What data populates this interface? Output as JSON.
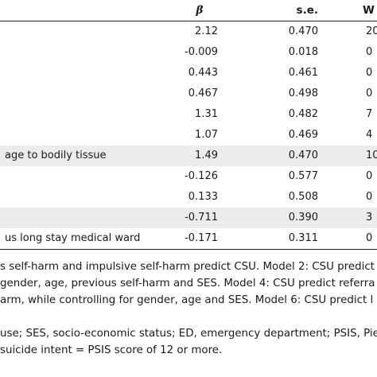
{
  "header": {
    "beta": "β",
    "se": "s.e.",
    "w": "W"
  },
  "rows": [
    {
      "label": "",
      "beta": "2.12",
      "se": "0.470",
      "w": "20"
    },
    {
      "label": "",
      "beta": "-0.009",
      "se": "0.018",
      "w": "0"
    },
    {
      "label": "",
      "beta": "0.443",
      "se": "0.461",
      "w": "0"
    },
    {
      "label": "",
      "beta": "0.467",
      "se": "0.498",
      "w": "0"
    },
    {
      "label": "",
      "beta": "1.31",
      "se": "0.482",
      "w": "7"
    },
    {
      "label": "",
      "beta": "1.07",
      "se": "0.469",
      "w": "4"
    },
    {
      "label": "age to bodily tissue",
      "beta": "1.49",
      "se": "0.470",
      "w": "10"
    },
    {
      "label": "",
      "beta": "-0.126",
      "se": "0.577",
      "w": "0"
    },
    {
      "label": "",
      "beta": "0.133",
      "se": "0.508",
      "w": "0"
    },
    {
      "label": "",
      "beta": "-0.711",
      "se": "0.390",
      "w": "3"
    },
    {
      "label": "us long stay medical ward",
      "beta": "-0.171",
      "se": "0.311",
      "w": "0"
    }
  ],
  "notes": [
    "s self-harm and impulsive self-harm predict CSU. Model 2: CSU predict",
    "gender, age, previous self-harm and SES. Model 4: CSU predict referra",
    "arm, while controlling for gender, age and SES. Model 6: CSU predict l",
    "",
    " use; SES, socio-economic status; ED, emergency department; PSIS, Pie",
    " suicide intent = PSIS score of 12 or more."
  ]
}
